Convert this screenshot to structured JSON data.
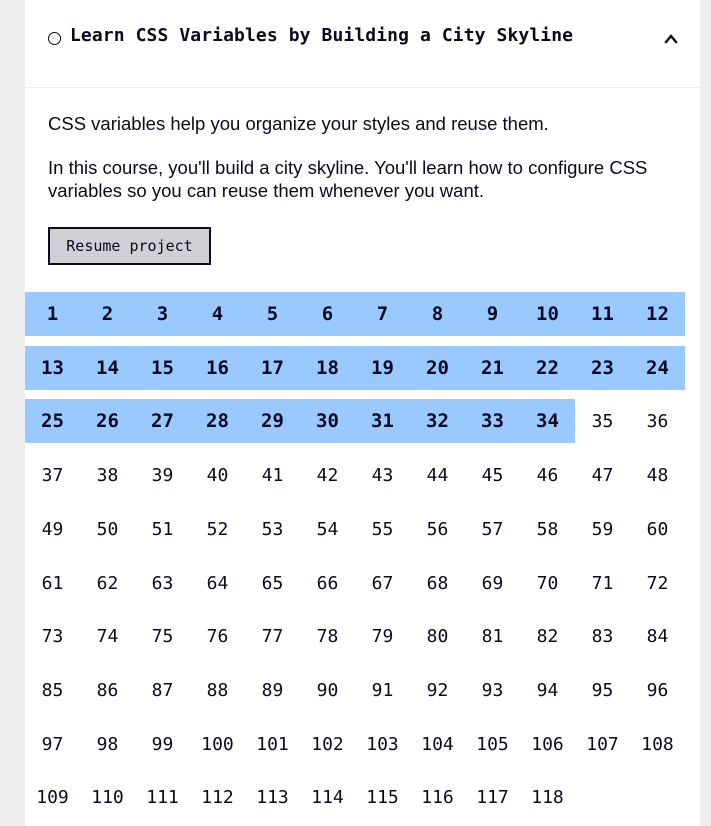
{
  "course": {
    "title": "Learn CSS Variables by Building a City Skyline",
    "description_1": "CSS variables help you organize your styles and reuse them.",
    "description_2": "In this course, you'll build a city skyline. You'll learn how to configure CSS variables so you can reuse them whenever you want.",
    "resume_label": "Resume project",
    "caret_icon": "chevron-up-icon"
  },
  "steps": {
    "total": 118,
    "completed": 34,
    "per_row": 12,
    "labels": [
      "1",
      "2",
      "3",
      "4",
      "5",
      "6",
      "7",
      "8",
      "9",
      "10",
      "11",
      "12",
      "13",
      "14",
      "15",
      "16",
      "17",
      "18",
      "19",
      "20",
      "21",
      "22",
      "23",
      "24",
      "25",
      "26",
      "27",
      "28",
      "29",
      "30",
      "31",
      "32",
      "33",
      "34",
      "35",
      "36",
      "37",
      "38",
      "39",
      "40",
      "41",
      "42",
      "43",
      "44",
      "45",
      "46",
      "47",
      "48",
      "49",
      "50",
      "51",
      "52",
      "53",
      "54",
      "55",
      "56",
      "57",
      "58",
      "59",
      "60",
      "61",
      "62",
      "63",
      "64",
      "65",
      "66",
      "67",
      "68",
      "69",
      "70",
      "71",
      "72",
      "73",
      "74",
      "75",
      "76",
      "77",
      "78",
      "79",
      "80",
      "81",
      "82",
      "83",
      "84",
      "85",
      "86",
      "87",
      "88",
      "89",
      "90",
      "91",
      "92",
      "93",
      "94",
      "95",
      "96",
      "97",
      "98",
      "99",
      "100",
      "101",
      "102",
      "103",
      "104",
      "105",
      "106",
      "107",
      "108",
      "109",
      "110",
      "111",
      "112",
      "113",
      "114",
      "115",
      "116",
      "117",
      "118"
    ]
  },
  "colors": {
    "text": "#0a0a23",
    "completed_bg": "#99c9ff",
    "button_bg": "#d0d0d5",
    "page_bg": "#eeeff1"
  }
}
